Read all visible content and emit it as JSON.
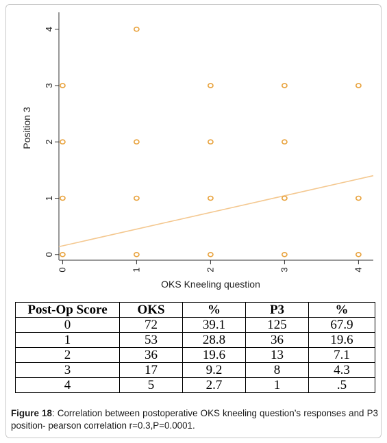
{
  "chart_data": {
    "type": "scatter",
    "xlabel": "OKS Kneeling question",
    "ylabel": "Position 3",
    "x_ticks": [
      "0",
      "1",
      "2",
      "3",
      "4"
    ],
    "y_ticks": [
      "0",
      "1",
      "2",
      "3",
      "4"
    ],
    "xlim": [
      -0.05,
      4.2
    ],
    "ylim": [
      -0.1,
      4.3
    ],
    "points": [
      {
        "x": 0,
        "y": 0
      },
      {
        "x": 1,
        "y": 0
      },
      {
        "x": 2,
        "y": 0
      },
      {
        "x": 3,
        "y": 0
      },
      {
        "x": 4,
        "y": 0
      },
      {
        "x": 0,
        "y": 1
      },
      {
        "x": 1,
        "y": 1
      },
      {
        "x": 2,
        "y": 1
      },
      {
        "x": 3,
        "y": 1
      },
      {
        "x": 4,
        "y": 1
      },
      {
        "x": 0,
        "y": 2
      },
      {
        "x": 1,
        "y": 2
      },
      {
        "x": 2,
        "y": 2
      },
      {
        "x": 3,
        "y": 2
      },
      {
        "x": 0,
        "y": 3
      },
      {
        "x": 2,
        "y": 3
      },
      {
        "x": 3,
        "y": 3
      },
      {
        "x": 4,
        "y": 3
      },
      {
        "x": 1,
        "y": 4
      }
    ],
    "fit_line": {
      "x": [
        -0.05,
        4.2
      ],
      "y": [
        0.14,
        1.4
      ]
    },
    "grid": false,
    "colors": {
      "marker": "#e8a23c",
      "fit_line": "#f4c890",
      "axis": "#333333"
    }
  },
  "table": {
    "headers": [
      "Post-Op Score",
      "OKS",
      "%",
      "P3",
      "%"
    ],
    "rows": [
      [
        "0",
        "72",
        "39.1",
        "125",
        "67.9"
      ],
      [
        "1",
        "53",
        "28.8",
        "36",
        "19.6"
      ],
      [
        "2",
        "36",
        "19.6",
        "13",
        "7.1"
      ],
      [
        "3",
        "17",
        "9.2",
        "8",
        "4.3"
      ],
      [
        "4",
        "5",
        "2.7",
        "1",
        ".5"
      ]
    ]
  },
  "caption": {
    "label": "Figure 18",
    "text": ": Correlation between postoperative OKS kneeling question’s responses and P3 position- pearson correlation r=0.3,P=0.0001."
  }
}
